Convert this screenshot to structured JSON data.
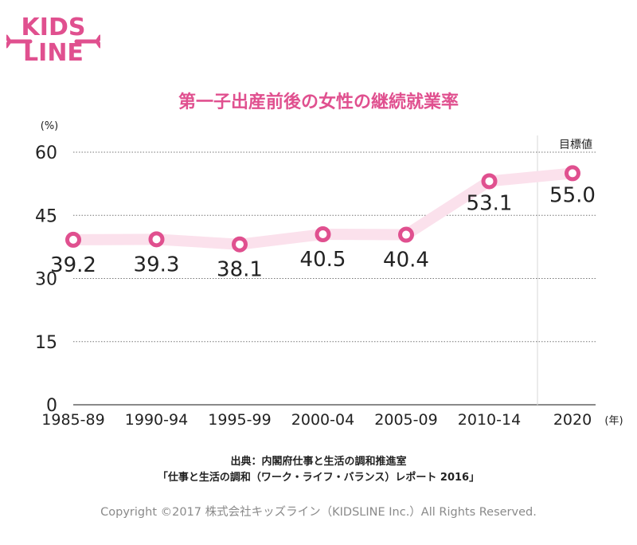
{
  "brand": {
    "logo_text_top": "KIDS",
    "logo_text_bottom": "LINE",
    "color": "#e0508f"
  },
  "chart_data": {
    "type": "line",
    "title": "第一子出産前後の女性の継続就業率",
    "ylabel": "(%)",
    "xunit": "(年)",
    "categories": [
      "1985-89",
      "1990-94",
      "1995-99",
      "2000-04",
      "2005-09",
      "2010-14",
      "2020"
    ],
    "values": [
      39.2,
      39.3,
      38.1,
      40.5,
      40.4,
      53.1,
      55.0
    ],
    "value_labels": [
      "39.2",
      "39.3",
      "38.1",
      "40.5",
      "40.4",
      "53.1",
      "55.0"
    ],
    "yticks": [
      "0",
      "15",
      "30",
      "45",
      "60"
    ],
    "ylim": [
      0,
      60
    ],
    "target_label": "目標値",
    "line_color": "#fbe1ec",
    "marker_color": "#e0508f",
    "grid": true
  },
  "source": {
    "line1": "出典：内閣府仕事と生活の調和推進室",
    "line2": "「仕事と生活の調和（ワーク・ライフ・バランス）レポート 2016」"
  },
  "copyright": "Copyright ©2017 株式会社キッズライン（KIDSLINE Inc.）All Rights Reserved."
}
